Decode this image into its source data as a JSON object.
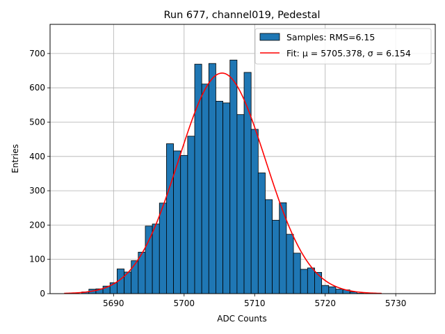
{
  "chart_data": {
    "type": "bar",
    "title": "Run 677, channel019, Pedestal",
    "xlabel": "ADC Counts",
    "ylabel": "Entries",
    "xlim": [
      5681,
      5735.6
    ],
    "ylim": [
      0,
      785
    ],
    "xticks": [
      5690,
      5700,
      5710,
      5720,
      5730
    ],
    "yticks": [
      0,
      100,
      200,
      300,
      400,
      500,
      600,
      700
    ],
    "grid": true,
    "legend_position": "top-right",
    "legend": [
      "Samples: RMS=6.15",
      "Fit: μ = 5705.378, σ = 6.154"
    ],
    "bar_color": "#1f77b4",
    "fit_color": "#ff0000",
    "bin_width": 1,
    "bins": [
      {
        "x": 5686,
        "value": 5
      },
      {
        "x": 5687,
        "value": 13
      },
      {
        "x": 5688,
        "value": 14
      },
      {
        "x": 5689,
        "value": 22
      },
      {
        "x": 5690,
        "value": 32
      },
      {
        "x": 5691,
        "value": 72
      },
      {
        "x": 5692,
        "value": 63
      },
      {
        "x": 5693,
        "value": 96
      },
      {
        "x": 5694,
        "value": 121
      },
      {
        "x": 5695,
        "value": 197
      },
      {
        "x": 5696,
        "value": 203
      },
      {
        "x": 5697,
        "value": 264
      },
      {
        "x": 5698,
        "value": 437
      },
      {
        "x": 5699,
        "value": 416
      },
      {
        "x": 5700,
        "value": 403
      },
      {
        "x": 5701,
        "value": 459
      },
      {
        "x": 5702,
        "value": 669
      },
      {
        "x": 5703,
        "value": 611
      },
      {
        "x": 5704,
        "value": 671
      },
      {
        "x": 5705,
        "value": 561
      },
      {
        "x": 5706,
        "value": 556
      },
      {
        "x": 5707,
        "value": 681
      },
      {
        "x": 5708,
        "value": 522
      },
      {
        "x": 5709,
        "value": 645
      },
      {
        "x": 5710,
        "value": 479
      },
      {
        "x": 5711,
        "value": 352
      },
      {
        "x": 5712,
        "value": 274
      },
      {
        "x": 5713,
        "value": 214
      },
      {
        "x": 5714,
        "value": 265
      },
      {
        "x": 5715,
        "value": 173
      },
      {
        "x": 5716,
        "value": 118
      },
      {
        "x": 5717,
        "value": 71
      },
      {
        "x": 5718,
        "value": 75
      },
      {
        "x": 5719,
        "value": 62
      },
      {
        "x": 5720,
        "value": 24
      },
      {
        "x": 5721,
        "value": 20
      },
      {
        "x": 5722,
        "value": 13
      },
      {
        "x": 5723,
        "value": 11
      },
      {
        "x": 5724,
        "value": 5
      },
      {
        "x": 5725,
        "value": 1
      }
    ],
    "fit": {
      "mu": 5705.378,
      "sigma": 6.154,
      "amplitude": 643,
      "x_range": [
        5683,
        5728
      ]
    }
  }
}
